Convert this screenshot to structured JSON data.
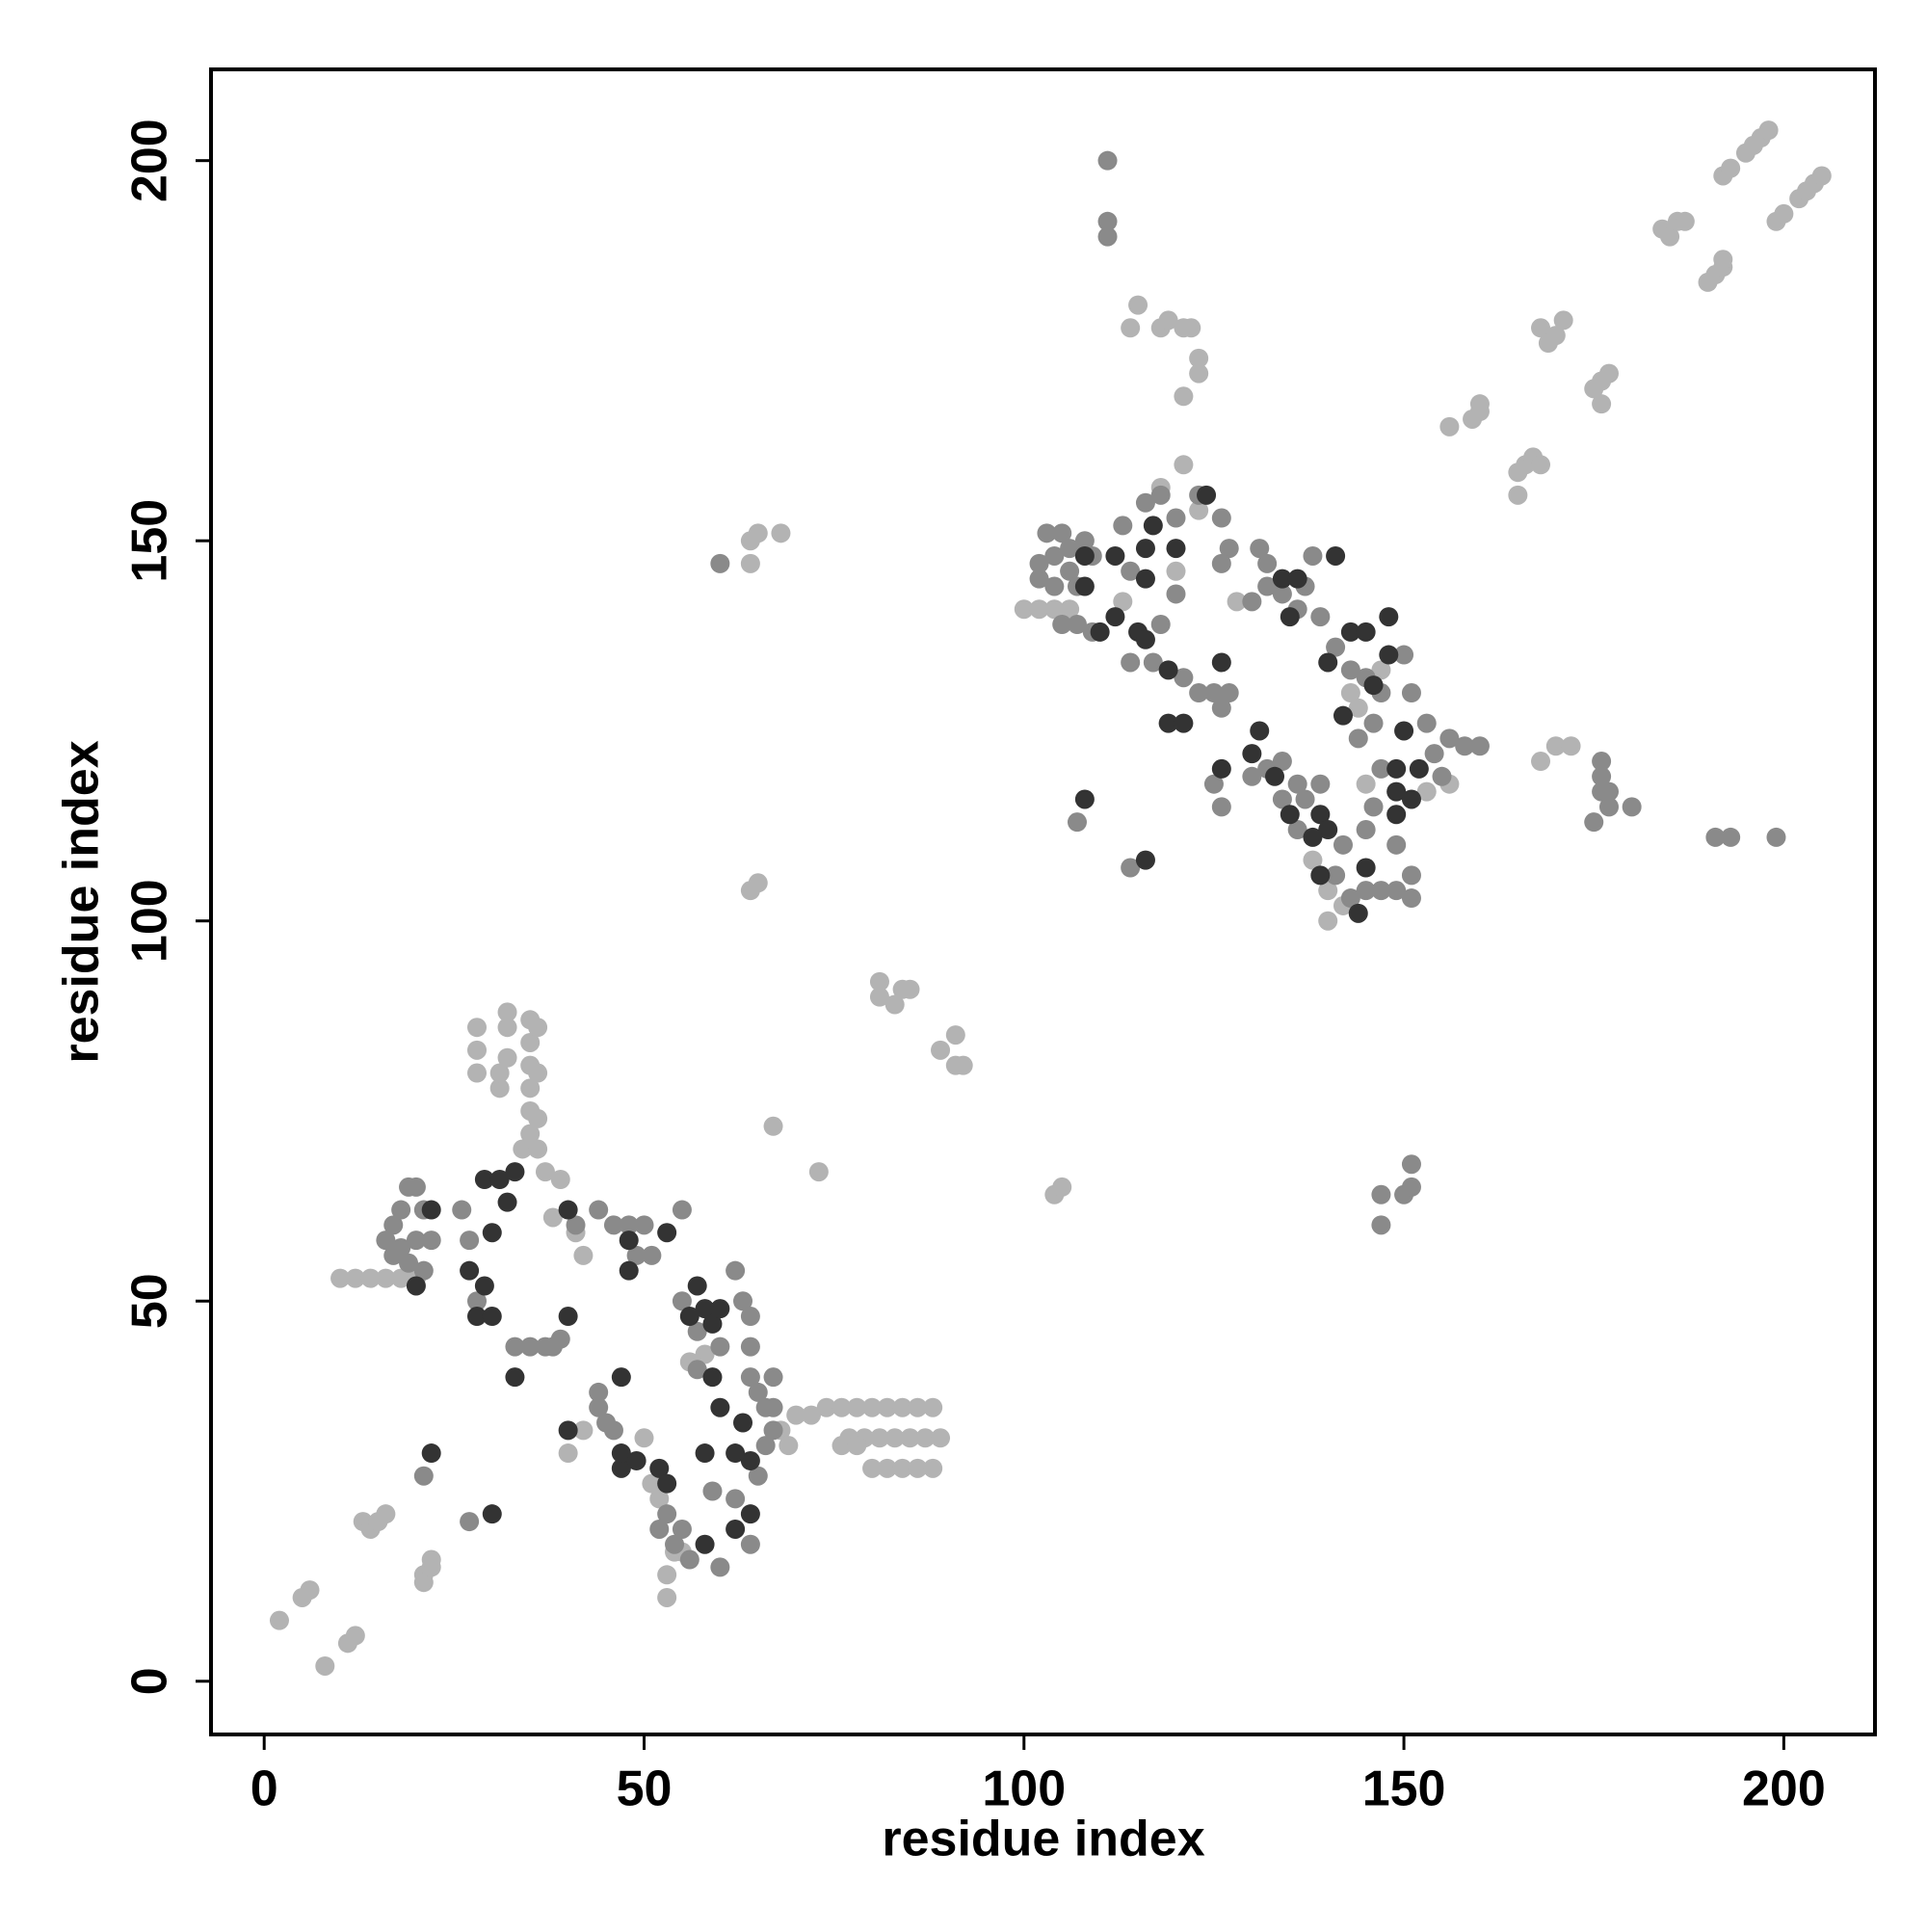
{
  "chart_data": {
    "type": "scatter",
    "xlabel": "residue index",
    "ylabel": "residue index",
    "xlim": [
      -7,
      212
    ],
    "ylim": [
      -7,
      212
    ],
    "xticks": [
      0,
      50,
      100,
      150,
      200
    ],
    "yticks": [
      0,
      50,
      100,
      150,
      200
    ],
    "series": [
      {
        "color": "#b3b3b3",
        "x": [
          2,
          5,
          6,
          8,
          11,
          12,
          13,
          14,
          15,
          16,
          21,
          21,
          22,
          22,
          10,
          12,
          14,
          16,
          18,
          20,
          28,
          28,
          28,
          31,
          31,
          32,
          32,
          32,
          35,
          35,
          35,
          35,
          35,
          35,
          36,
          36,
          36,
          53,
          53,
          54,
          55,
          52,
          50,
          51,
          56,
          58,
          42,
          41,
          38,
          42,
          40,
          68,
          69,
          72,
          34,
          36,
          37,
          39,
          70,
          74,
          76,
          78,
          80,
          82,
          84,
          86,
          88,
          77,
          79,
          81,
          83,
          85,
          87,
          89,
          80,
          82,
          84,
          86,
          88,
          76,
          78,
          64,
          64,
          65,
          68,
          64,
          65,
          67,
          73,
          81,
          81,
          84,
          85,
          83,
          89,
          91,
          91,
          92,
          104,
          105,
          100,
          102,
          104,
          106,
          118,
          121,
          123,
          113,
          120,
          128,
          140,
          142,
          143,
          144,
          153,
          156,
          147,
          145,
          138,
          140,
          168,
          170,
          172,
          114,
          115,
          118,
          119,
          121,
          122,
          123,
          123,
          121,
          156,
          159,
          160,
          160,
          165,
          165,
          166,
          167,
          168,
          168,
          169,
          170,
          171,
          175,
          176,
          177,
          176,
          184,
          185,
          186,
          187,
          190,
          191,
          192,
          192,
          192,
          193,
          195,
          196,
          197,
          198,
          199,
          200,
          202,
          203,
          204,
          205
        ],
        "y": [
          8,
          11,
          12,
          2,
          5,
          6,
          21,
          20,
          21,
          22,
          14,
          13,
          15,
          16,
          53,
          53,
          53,
          53,
          53,
          53,
          80,
          83,
          86,
          78,
          80,
          82,
          86,
          88,
          72,
          75,
          78,
          81,
          84,
          87,
          74,
          80,
          86,
          11,
          14,
          17,
          17,
          24,
          32,
          26,
          42,
          43,
          56,
          59,
          61,
          33,
          30,
          33,
          31,
          35,
          70,
          70,
          67,
          66,
          35,
          36,
          36,
          36,
          36,
          36,
          36,
          36,
          36,
          32,
          32,
          32,
          32,
          32,
          32,
          32,
          28,
          28,
          28,
          28,
          28,
          31,
          31,
          147,
          150,
          151,
          151,
          104,
          105,
          73,
          67,
          92,
          90,
          91,
          91,
          89,
          83,
          85,
          81,
          81,
          64,
          65,
          141,
          141,
          141,
          141,
          157,
          160,
          154,
          142,
          146,
          142,
          100,
          102,
          130,
          128,
          117,
          118,
          133,
          118,
          108,
          104,
          121,
          123,
          123,
          178,
          181,
          178,
          179,
          178,
          178,
          172,
          174,
          169,
          165,
          166,
          167,
          168,
          156,
          159,
          160,
          161,
          160,
          178,
          176,
          177,
          179,
          170,
          171,
          172,
          168,
          191,
          190,
          192,
          192,
          184,
          185,
          186,
          187,
          198,
          199,
          201,
          202,
          203,
          204,
          192,
          193,
          195,
          196,
          197,
          198
        ]
      },
      {
        "color": "#8a8a8a",
        "x": [
          21,
          27,
          16,
          17,
          18,
          19,
          20,
          21,
          22,
          17,
          19,
          21,
          18,
          20,
          26,
          27,
          28,
          33,
          35,
          37,
          38,
          39,
          41,
          44,
          45,
          44,
          46,
          48,
          44,
          46,
          50,
          55,
          49,
          51,
          55,
          57,
          57,
          60,
          62,
          63,
          64,
          64,
          64,
          65,
          66,
          67,
          67,
          66,
          65,
          67,
          59,
          62,
          64,
          60,
          56,
          55,
          53,
          54,
          52,
          60,
          147,
          147,
          150,
          151,
          151,
          102,
          102,
          104,
          105,
          106,
          107,
          108,
          109,
          107,
          109,
          105,
          104,
          103,
          106,
          113,
          116,
          118,
          120,
          123,
          126,
          127,
          121,
          123,
          125,
          118,
          114,
          117,
          126,
          120,
          114,
          125,
          126,
          131,
          132,
          130,
          132,
          134,
          136,
          137,
          138,
          139,
          127,
          126,
          130,
          132,
          134,
          136,
          137,
          134,
          136,
          139,
          141,
          143,
          145,
          147,
          149,
          151,
          151,
          149,
          145,
          142,
          146,
          147,
          144,
          146,
          141,
          143,
          145,
          147,
          150,
          151,
          153,
          154,
          155,
          156,
          158,
          107,
          114,
          176,
          176,
          176,
          177,
          177,
          180,
          175,
          191,
          193,
          199,
          160,
          111,
          111,
          111
        ],
        "y": [
          27,
          21,
          58,
          60,
          62,
          65,
          65,
          62,
          58,
          56,
          55,
          54,
          57,
          58,
          62,
          58,
          50,
          44,
          44,
          44,
          44,
          45,
          60,
          38,
          34,
          36,
          33,
          60,
          62,
          60,
          60,
          62,
          56,
          56,
          50,
          46,
          41,
          44,
          54,
          50,
          48,
          44,
          40,
          38,
          36,
          40,
          36,
          31,
          27,
          33,
          25,
          24,
          18,
          15,
          16,
          20,
          22,
          18,
          20,
          147,
          60,
          64,
          64,
          68,
          65,
          145,
          147,
          148,
          151,
          146,
          144,
          150,
          148,
          139,
          138,
          139,
          144,
          151,
          149,
          152,
          155,
          156,
          153,
          156,
          153,
          149,
          132,
          130,
          130,
          139,
          134,
          134,
          147,
          143,
          146,
          118,
          115,
          149,
          147,
          142,
          144,
          143,
          141,
          144,
          148,
          140,
          130,
          128,
          119,
          120,
          121,
          118,
          116,
          116,
          112,
          118,
          106,
          103,
          104,
          104,
          104,
          103,
          106,
          110,
          112,
          110,
          115,
          120,
          124,
          126,
          136,
          133,
          132,
          130,
          135,
          130,
          126,
          122,
          119,
          124,
          123,
          113,
          107,
          119,
          121,
          117,
          115,
          117,
          115,
          113,
          111,
          111,
          111,
          123,
          200,
          192,
          190
        ]
      },
      {
        "color": "#333333",
        "x": [
          22,
          30,
          22,
          20,
          28,
          30,
          29,
          27,
          30,
          32,
          29,
          31,
          33,
          33,
          40,
          40,
          40,
          47,
          47,
          49,
          52,
          53,
          48,
          48,
          47,
          53,
          56,
          58,
          59,
          59,
          60,
          63,
          64,
          62,
          64,
          62,
          58,
          58,
          57,
          60,
          108,
          108,
          110,
          112,
          112,
          116,
          116,
          117,
          120,
          115,
          116,
          119,
          119,
          121,
          124,
          126,
          126,
          130,
          131,
          133,
          135,
          139,
          140,
          138,
          134,
          136,
          141,
          140,
          142,
          143,
          145,
          146,
          148,
          148,
          149,
          149,
          149,
          150,
          151,
          152,
          135,
          139,
          144,
          145,
          108,
          116
        ],
        "y": [
          30,
          22,
          62,
          52,
          48,
          48,
          52,
          54,
          59,
          63,
          66,
          66,
          67,
          40,
          48,
          62,
          33,
          28,
          30,
          29,
          28,
          26,
          58,
          54,
          40,
          59,
          48,
          49,
          47,
          40,
          36,
          34,
          29,
          30,
          22,
          20,
          30,
          18,
          52,
          49,
          148,
          144,
          138,
          140,
          148,
          149,
          145,
          152,
          149,
          138,
          137,
          133,
          126,
          126,
          156,
          134,
          120,
          122,
          125,
          119,
          114,
          114,
          112,
          111,
          145,
          145,
          148,
          134,
          127,
          138,
          138,
          131,
          135,
          140,
          120,
          117,
          114,
          125,
          116,
          120,
          140,
          106,
          101,
          107,
          116,
          108
        ]
      }
    ]
  }
}
